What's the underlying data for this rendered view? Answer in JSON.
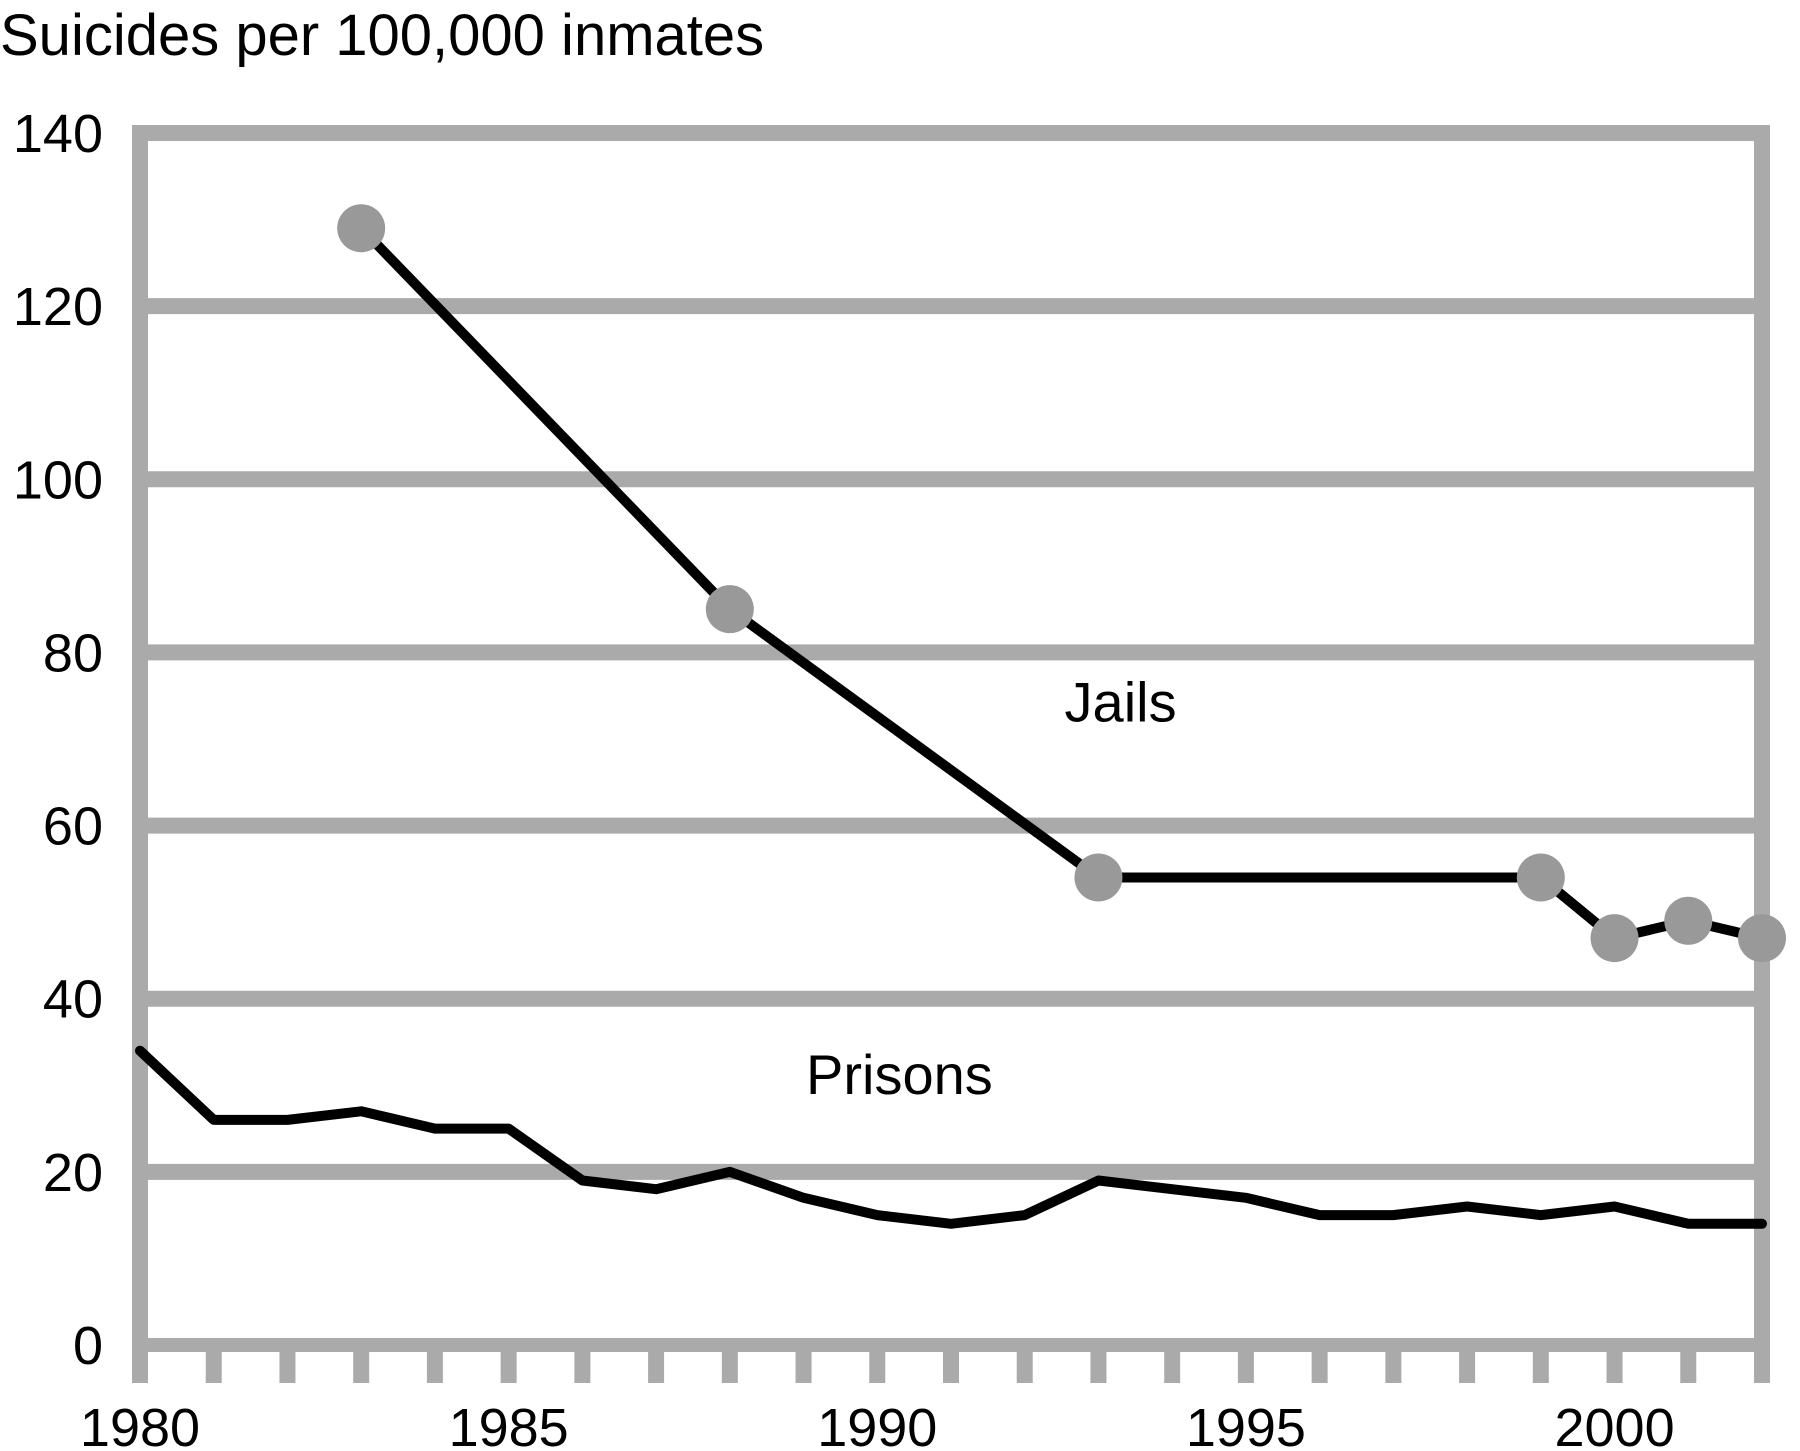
{
  "chart_data": {
    "type": "line",
    "title": "",
    "ylabel": "Suicides per 100,000 inmates",
    "xlabel": "",
    "xlim": [
      1980,
      2002
    ],
    "ylim": [
      0,
      140
    ],
    "x_ticks": [
      1980,
      1985,
      1990,
      1995,
      2000
    ],
    "x_tick_labels": [
      "1980",
      "1985",
      "1990",
      "1995",
      "2000"
    ],
    "y_ticks": [
      0,
      20,
      40,
      60,
      80,
      100,
      120,
      140
    ],
    "y_tick_labels": [
      "0",
      "20",
      "40",
      "60",
      "80",
      "100",
      "120",
      "140"
    ],
    "grid": "horizontal",
    "colors": {
      "frame": "#aaaaaa",
      "line": "#000000",
      "marker": "#999999"
    },
    "series": [
      {
        "name": "Jails",
        "x": [
          1983,
          1988,
          1993,
          1999,
          2000,
          2001,
          2002
        ],
        "y": [
          129,
          85,
          54,
          54,
          47,
          49,
          47
        ],
        "markers": true,
        "label_x": 1993.3,
        "label_y": 72
      },
      {
        "name": "Prisons",
        "x": [
          1980,
          1981,
          1982,
          1983,
          1984,
          1985,
          1986,
          1987,
          1988,
          1989,
          1990,
          1991,
          1992,
          1993,
          1994,
          1995,
          1996,
          1997,
          1998,
          1999,
          2000,
          2001,
          2002
        ],
        "y": [
          34,
          26,
          26,
          27,
          25,
          25,
          19,
          18,
          20,
          17,
          15,
          14,
          15,
          19,
          18,
          17,
          15,
          15,
          16,
          15,
          16,
          14,
          14
        ],
        "markers": false,
        "label_x": 1990.3,
        "label_y": 29
      }
    ]
  }
}
